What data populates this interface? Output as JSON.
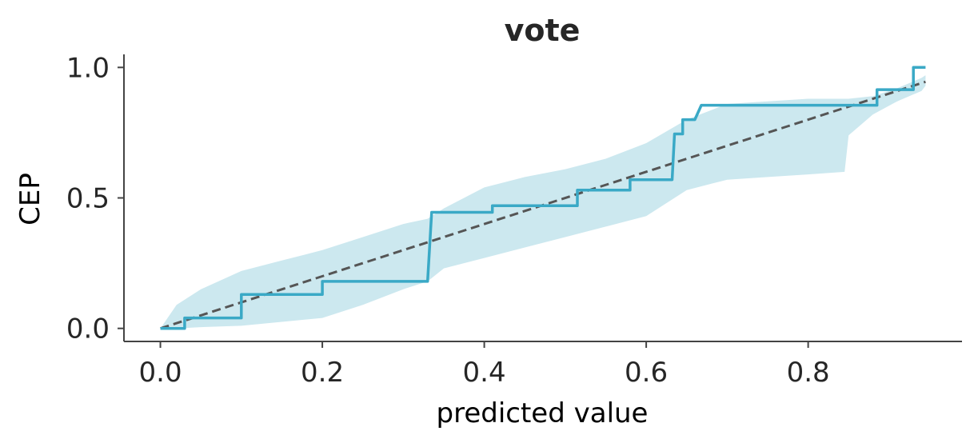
{
  "chart_data": {
    "type": "line",
    "title": "vote",
    "xlabel": "predicted value",
    "ylabel": "CEP",
    "xlim": [
      -0.045,
      0.99
    ],
    "ylim": [
      -0.05,
      1.05
    ],
    "x_ticks": [
      0.0,
      0.2,
      0.4,
      0.6,
      0.8
    ],
    "x_tick_labels": [
      "0.0",
      "0.2",
      "0.4",
      "0.6",
      "0.8"
    ],
    "y_ticks": [
      0.0,
      0.5,
      1.0
    ],
    "y_tick_labels": [
      "0.0",
      "0.5",
      "1.0"
    ],
    "grid": false,
    "colors": {
      "band": "#cce8ef",
      "cep_line": "#3aa9c6",
      "reference_line": "#555555",
      "axis": "#444444",
      "text": "#262626"
    },
    "series": [
      {
        "style": "step",
        "x": [
          0.0,
          0.03,
          0.03,
          0.1,
          0.1,
          0.2,
          0.2,
          0.33,
          0.335,
          0.41,
          0.41,
          0.515,
          0.515,
          0.58,
          0.58,
          0.632,
          0.635,
          0.645,
          0.645,
          0.66,
          0.668,
          0.885,
          0.885,
          0.93,
          0.93,
          0.945
        ],
        "y": [
          0.0,
          0.0,
          0.04,
          0.04,
          0.13,
          0.13,
          0.18,
          0.18,
          0.445,
          0.445,
          0.47,
          0.47,
          0.53,
          0.53,
          0.57,
          0.57,
          0.745,
          0.745,
          0.8,
          0.8,
          0.855,
          0.855,
          0.915,
          0.915,
          1.0,
          1.0
        ]
      },
      {
        "style": "dashed",
        "x": [
          0.0,
          0.945
        ],
        "y": [
          0.0,
          0.945
        ]
      }
    ],
    "band": {
      "x": [
        0.0,
        0.02,
        0.05,
        0.1,
        0.15,
        0.2,
        0.25,
        0.3,
        0.33,
        0.35,
        0.4,
        0.45,
        0.5,
        0.55,
        0.6,
        0.65,
        0.7,
        0.75,
        0.8,
        0.845,
        0.85,
        0.88,
        0.91,
        0.94,
        0.945
      ],
      "lower": [
        0.0,
        0.0,
        0.005,
        0.01,
        0.025,
        0.04,
        0.09,
        0.15,
        0.18,
        0.23,
        0.27,
        0.31,
        0.35,
        0.39,
        0.43,
        0.53,
        0.57,
        0.58,
        0.59,
        0.6,
        0.74,
        0.82,
        0.87,
        0.91,
        0.93
      ],
      "upper": [
        0.0,
        0.09,
        0.15,
        0.22,
        0.26,
        0.3,
        0.35,
        0.4,
        0.42,
        0.46,
        0.54,
        0.58,
        0.61,
        0.65,
        0.71,
        0.8,
        0.86,
        0.87,
        0.88,
        0.88,
        0.88,
        0.89,
        0.92,
        0.96,
        0.97
      ]
    }
  }
}
